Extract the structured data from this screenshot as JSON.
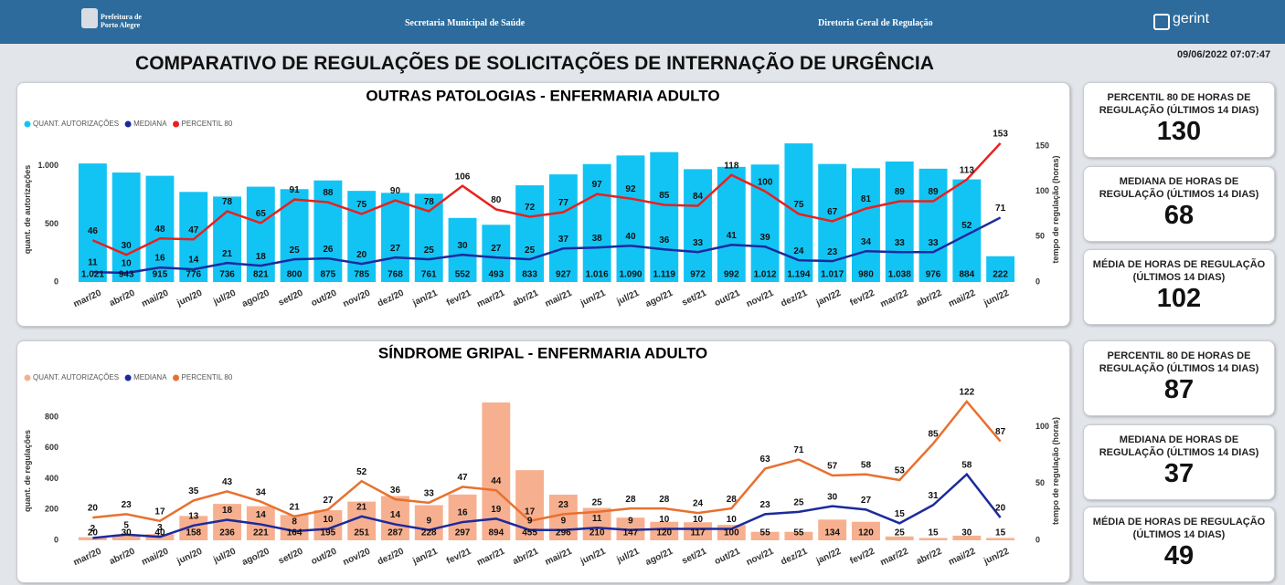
{
  "header": {
    "logo_text": [
      "Prefeitura de",
      "Porto Alegre"
    ],
    "department": "Secretaria Municipal de Saúde",
    "directorate": "Diretoria Geral de Regulação",
    "brand": "gerint"
  },
  "timestamp": "09/06/2022 07:07:47",
  "title": "COMPARATIVO DE REGULAÇÕES DE SOLICITAÇÕES DE INTERNAÇÃO DE URGÊNCIA",
  "chart_data": [
    {
      "type": "combo",
      "title": "OUTRAS PATOLOGIAS - ENFERMARIA ADULTO",
      "y_label": "quant. de autorizações",
      "y2_label": "tempo de regulação (horas)",
      "categories": [
        "mar/20",
        "abr/20",
        "mai/20",
        "jun/20",
        "jul/20",
        "ago/20",
        "set/20",
        "out/20",
        "nov/20",
        "dez/20",
        "jan/21",
        "fev/21",
        "mar/21",
        "abr/21",
        "mai/21",
        "jun/21",
        "jul/21",
        "ago/21",
        "set/21",
        "out/21",
        "nov/21",
        "dez/21",
        "jan/22",
        "fev/22",
        "mar/22",
        "abr/22",
        "mai/22",
        "jun/22"
      ],
      "ylim": [
        0,
        1250
      ],
      "yticks": [
        0,
        500,
        {
          "value": 1000,
          "label": "1.000"
        }
      ],
      "y2lim": [
        0,
        160
      ],
      "y2ticks": [
        0,
        50,
        100,
        150
      ],
      "series": [
        {
          "name": "QUANT. AUTORIZAÇÕES",
          "type": "bar",
          "color": "#12c4f4",
          "values": [
            1021,
            943,
            915,
            776,
            736,
            821,
            800,
            875,
            785,
            768,
            761,
            552,
            493,
            833,
            927,
            1016,
            1090,
            1119,
            972,
            992,
            1012,
            1194,
            1017,
            980,
            1038,
            976,
            884,
            222
          ],
          "value_labels": [
            "1.021",
            "943",
            "915",
            "776",
            "736",
            "821",
            "800",
            "875",
            "785",
            "768",
            "761",
            "552",
            "493",
            "833",
            "927",
            "1.016",
            "1.090",
            "1.119",
            "972",
            "992",
            "1.012",
            "1.194",
            "1.017",
            "980",
            "1.038",
            "976",
            "884",
            "222"
          ]
        },
        {
          "name": "MEDIANA",
          "type": "line",
          "axis": "y2",
          "color": "#1c2a9c",
          "values": [
            11,
            10,
            16,
            14,
            21,
            18,
            25,
            26,
            20,
            27,
            25,
            30,
            27,
            25,
            37,
            38,
            40,
            36,
            33,
            41,
            39,
            24,
            23,
            34,
            33,
            33,
            52,
            71
          ]
        },
        {
          "name": "PERCENTIL 80",
          "type": "line",
          "axis": "y2",
          "color": "#e8201e",
          "values": [
            46,
            30,
            48,
            47,
            78,
            65,
            91,
            88,
            75,
            90,
            78,
            106,
            80,
            72,
            77,
            97,
            92,
            85,
            84,
            118,
            100,
            75,
            67,
            81,
            89,
            89,
            113,
            153
          ]
        }
      ]
    },
    {
      "type": "combo",
      "title": "SÍNDROME GRIPAL - ENFERMARIA ADULTO",
      "y_label": "quant. de regulações",
      "y2_label": "tempo de regulação (horas)",
      "categories": [
        "mar/20",
        "abr/20",
        "mai/20",
        "jun/20",
        "jul/20",
        "ago/20",
        "set/20",
        "out/20",
        "nov/20",
        "dez/20",
        "jan/21",
        "fev/21",
        "mar/21",
        "abr/21",
        "mai/21",
        "jun/21",
        "jul/21",
        "ago/21",
        "set/21",
        "out/21",
        "nov/21",
        "dez/21",
        "jan/22",
        "fev/22",
        "mar/22",
        "abr/22",
        "mai/22",
        "jun/22"
      ],
      "ylim": [
        0,
        900
      ],
      "yticks": [
        0,
        200,
        400,
        600,
        800
      ],
      "y2lim": [
        0,
        122
      ],
      "y2ticks": [
        0,
        50,
        100
      ],
      "series": [
        {
          "name": "QUANT. AUTORIZAÇÕES",
          "type": "bar",
          "color": "#f7b08f",
          "values": [
            20,
            30,
            40,
            158,
            236,
            221,
            164,
            195,
            251,
            287,
            228,
            297,
            894,
            455,
            296,
            210,
            147,
            120,
            117,
            100,
            55,
            55,
            134,
            120,
            25,
            15,
            30,
            15
          ]
        },
        {
          "name": "MEDIANA",
          "type": "line",
          "axis": "y2",
          "color": "#1c2a9c",
          "values": [
            2,
            5,
            3,
            13,
            18,
            14,
            8,
            10,
            21,
            14,
            9,
            16,
            19,
            9,
            9,
            11,
            9,
            10,
            10,
            10,
            23,
            25,
            30,
            27,
            15,
            31,
            58,
            20
          ]
        },
        {
          "name": "PERCENTIL 80",
          "type": "line",
          "axis": "y2",
          "color": "#e8702f",
          "values": [
            20,
            23,
            17,
            35,
            43,
            34,
            21,
            27,
            52,
            36,
            33,
            47,
            44,
            17,
            23,
            25,
            28,
            28,
            24,
            28,
            63,
            71,
            57,
            58,
            53,
            85,
            122,
            87
          ]
        }
      ]
    }
  ],
  "kpis": [
    [
      {
        "label": "PERCENTIL 80 DE HORAS DE REGULAÇÃO (ÚLTIMOS 14 DIAS)",
        "value": "130"
      },
      {
        "label": "MEDIANA DE HORAS DE REGULAÇÃO (ÚLTIMOS 14 DIAS)",
        "value": "68"
      },
      {
        "label": "MÉDIA DE HORAS DE REGULAÇÃO (ÚLTIMOS 14 DIAS)",
        "value": "102"
      }
    ],
    [
      {
        "label": "PERCENTIL 80 DE HORAS DE REGULAÇÃO (ÚLTIMOS 14 DIAS)",
        "value": "87"
      },
      {
        "label": "MEDIANA DE HORAS DE REGULAÇÃO (ÚLTIMOS 14 DIAS)",
        "value": "37"
      },
      {
        "label": "MÉDIA DE HORAS DE REGULAÇÃO (ÚLTIMOS 14 DIAS)",
        "value": "49"
      }
    ]
  ]
}
